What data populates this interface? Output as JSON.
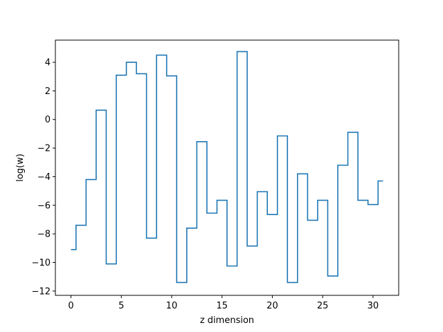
{
  "chart_data": {
    "type": "line",
    "drawstyle": "steps-mid",
    "title": "",
    "xlabel": "z dimension",
    "ylabel": "log(w)",
    "xlim": [
      -1.55,
      32.55
    ],
    "ylim": [
      -12.3,
      5.55
    ],
    "xticks": [
      0,
      5,
      10,
      15,
      20,
      25,
      30
    ],
    "yticks": [
      -12,
      -10,
      -8,
      -6,
      -4,
      -2,
      0,
      2,
      4
    ],
    "grid": false,
    "color": "#1f77b4",
    "series": [
      {
        "x": [
          0,
          1,
          2,
          3,
          4,
          5,
          6,
          7,
          8,
          9,
          10,
          11,
          12,
          13,
          14,
          15,
          16,
          17,
          18,
          19,
          20,
          21,
          22,
          23,
          24,
          25,
          26,
          27,
          28,
          29,
          30,
          31
        ],
        "values": [
          -9.1,
          -7.4,
          -4.2,
          0.65,
          -10.1,
          3.1,
          4.0,
          3.2,
          -8.3,
          4.5,
          3.05,
          -11.4,
          -7.6,
          -1.55,
          -6.55,
          -5.65,
          -10.25,
          4.75,
          -8.85,
          -5.05,
          -6.65,
          -1.15,
          -11.4,
          -3.8,
          -7.05,
          -5.65,
          -10.95,
          -3.2,
          -0.9,
          -5.65,
          -5.95,
          -4.3
        ]
      }
    ]
  }
}
